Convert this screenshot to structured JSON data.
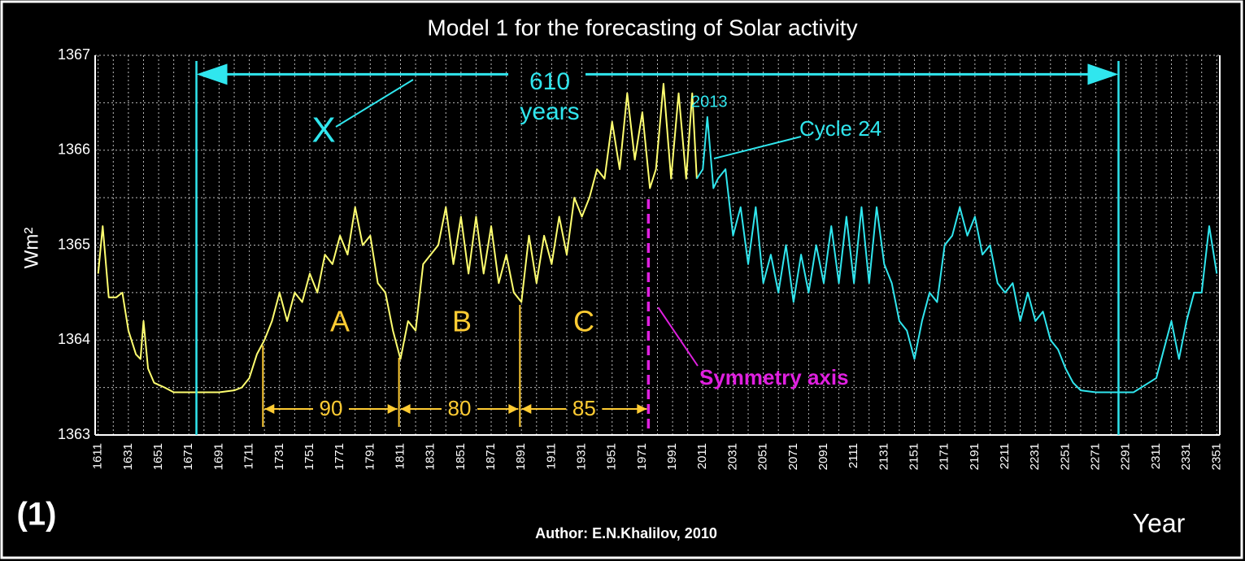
{
  "chart_data": {
    "type": "line",
    "title": "Model  1  for the  forecasting of  Solar activity",
    "y_label": "Wm²",
    "x_label": "Year",
    "figure_label": "(1)",
    "author": "Author: E.N.Khalilov, 2010",
    "xlim": [
      1609,
      2353
    ],
    "ylim": [
      1363,
      1367
    ],
    "yticks": [
      1363,
      1364,
      1365,
      1366,
      1367
    ],
    "xticks": [
      1611,
      1631,
      1651,
      1671,
      1691,
      1711,
      1731,
      1751,
      1771,
      1791,
      1811,
      1831,
      1851,
      1871,
      1891,
      1911,
      1931,
      1951,
      1971,
      1991,
      2011,
      2031,
      2051,
      2071,
      2091,
      2111,
      2131,
      2151,
      2171,
      2191,
      2211,
      2231,
      2251,
      2271,
      2291,
      2311,
      2331,
      2351
    ],
    "grid": true,
    "series": [
      {
        "color": "#ffff70",
        "x": [
          1611,
          1614,
          1618,
          1623,
          1627,
          1631,
          1636,
          1639,
          1641,
          1644,
          1648,
          1655,
          1661,
          1671,
          1681,
          1691,
          1701,
          1706,
          1711,
          1716,
          1721,
          1726,
          1731,
          1736,
          1741,
          1746,
          1751,
          1756,
          1761,
          1766,
          1771,
          1776,
          1781,
          1786,
          1791,
          1796,
          1801,
          1806,
          1811,
          1816,
          1821,
          1826,
          1831,
          1836,
          1841,
          1846,
          1851,
          1856,
          1861,
          1866,
          1871,
          1876,
          1881,
          1886,
          1891,
          1896,
          1901,
          1906,
          1911,
          1916,
          1921,
          1926,
          1931,
          1936,
          1941,
          1946,
          1951,
          1956,
          1961,
          1966,
          1971,
          1976,
          1980,
          1985,
          1990,
          1995,
          2000,
          2004,
          2007
        ],
        "values": [
          1364.7,
          1365.2,
          1364.45,
          1364.45,
          1364.5,
          1364.1,
          1363.85,
          1363.8,
          1364.2,
          1363.7,
          1363.55,
          1363.5,
          1363.45,
          1363.45,
          1363.45,
          1363.45,
          1363.47,
          1363.5,
          1363.6,
          1363.85,
          1364.0,
          1364.2,
          1364.5,
          1364.2,
          1364.5,
          1364.4,
          1364.7,
          1364.5,
          1364.9,
          1364.8,
          1365.1,
          1364.9,
          1365.4,
          1365.0,
          1365.1,
          1364.6,
          1364.5,
          1364.1,
          1363.8,
          1364.2,
          1364.1,
          1364.8,
          1364.9,
          1365.0,
          1365.4,
          1364.8,
          1365.3,
          1364.7,
          1365.3,
          1364.7,
          1365.2,
          1364.6,
          1364.9,
          1364.5,
          1364.4,
          1365.1,
          1364.6,
          1365.1,
          1364.8,
          1365.3,
          1364.9,
          1365.5,
          1365.3,
          1365.5,
          1365.8,
          1365.7,
          1366.3,
          1365.8,
          1366.6,
          1365.9,
          1366.4,
          1365.6,
          1365.8,
          1366.7,
          1365.7,
          1366.6,
          1365.7,
          1366.6,
          1365.7
        ]
      },
      {
        "color": "#30e6ee",
        "x": [
          2007,
          2011,
          2014,
          2018,
          2021,
          2026,
          2031,
          2036,
          2041,
          2046,
          2051,
          2056,
          2061,
          2066,
          2071,
          2076,
          2081,
          2086,
          2091,
          2096,
          2101,
          2106,
          2111,
          2116,
          2121,
          2126,
          2131,
          2136,
          2141,
          2146,
          2151,
          2156,
          2161,
          2166,
          2171,
          2176,
          2181,
          2186,
          2191,
          2196,
          2201,
          2206,
          2211,
          2216,
          2221,
          2226,
          2231,
          2236,
          2241,
          2246,
          2251,
          2256,
          2261,
          2271,
          2281,
          2291,
          2296,
          2301,
          2306,
          2311,
          2316,
          2321,
          2326,
          2331,
          2336,
          2341,
          2346,
          2351
        ],
        "values": [
          1365.7,
          1365.8,
          1366.35,
          1365.6,
          1365.7,
          1365.8,
          1365.1,
          1365.4,
          1364.8,
          1365.4,
          1364.6,
          1364.9,
          1364.5,
          1365.0,
          1364.4,
          1364.9,
          1364.5,
          1365.0,
          1364.6,
          1365.2,
          1364.6,
          1365.3,
          1364.6,
          1365.4,
          1364.6,
          1365.4,
          1364.8,
          1364.6,
          1364.2,
          1364.1,
          1363.8,
          1364.2,
          1364.5,
          1364.4,
          1365.0,
          1365.1,
          1365.4,
          1365.1,
          1365.3,
          1364.9,
          1365.0,
          1364.6,
          1364.5,
          1364.6,
          1364.2,
          1364.5,
          1364.2,
          1364.3,
          1364.0,
          1363.9,
          1363.7,
          1363.55,
          1363.47,
          1363.45,
          1363.45,
          1363.45,
          1363.45,
          1363.5,
          1363.55,
          1363.6,
          1363.9,
          1364.2,
          1363.8,
          1364.2,
          1364.5,
          1364.5,
          1365.2,
          1364.7
        ]
      }
    ],
    "span": {
      "x": [
        1676,
        2286
      ],
      "value": 1366.8,
      "label": "610",
      "sublabel": "years",
      "color": "#30e6ee"
    },
    "x_note": "X",
    "year_note": "2013",
    "cycle_note": "Cycle 24",
    "phases": [
      "A",
      "B",
      "C"
    ],
    "intervals": {
      "color": "#ffcc33",
      "items": [
        {
          "x": [
            1720,
            1810
          ],
          "label": "90"
        },
        {
          "x": [
            1810,
            1890
          ],
          "label": "80"
        },
        {
          "x": [
            1890,
            1975
          ],
          "label": "85"
        }
      ]
    },
    "symmetry": {
      "x": 1975,
      "label": "Symmetry axis",
      "color": "#e020e0"
    }
  }
}
